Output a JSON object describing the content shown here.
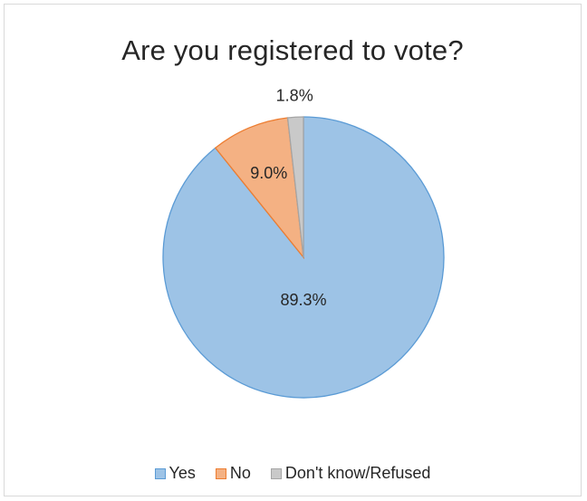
{
  "chart_data": {
    "type": "pie",
    "title": "Are you registered to vote?",
    "categories": [
      "Yes",
      "No",
      "Don't know/Refused"
    ],
    "values": [
      89.3,
      9.0,
      1.8
    ],
    "data_labels": [
      "89.3%",
      "9.0%",
      "1.8%"
    ],
    "colors": {
      "fill": [
        "#9dc3e6",
        "#f4b183",
        "#c9c9c9"
      ],
      "stroke": [
        "#5b9bd5",
        "#ed7d31",
        "#a5a5a5"
      ]
    },
    "legend_position": "bottom"
  }
}
